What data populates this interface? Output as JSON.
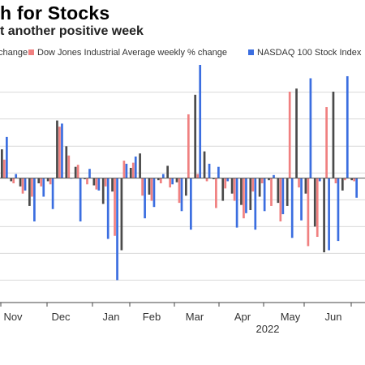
{
  "title": "h for Stocks",
  "subtitle": "t another positive week",
  "chart_data": {
    "type": "bar",
    "title": "h for Stocks",
    "subtitle": "t another positive week",
    "legend_placement": "top",
    "series": [
      {
        "name": "change",
        "color": "#4a4a4a",
        "values": [
          2.8,
          -0.3,
          -0.8,
          -2.7,
          -0.5,
          -0.3,
          5.6,
          3.1,
          1.1,
          -0.1,
          -0.7,
          -2.5,
          -1.3,
          -7.0,
          1.0,
          2.4,
          -1.6,
          -0.2,
          1.2,
          -0.4,
          -1.7,
          8.1,
          2.6,
          -0.1,
          -2.2,
          -1.5,
          -2.6,
          -3.1,
          -1.8,
          -0.2,
          -2.4,
          -2.7,
          8.7,
          -1.5,
          -4.7,
          -7.2,
          8.4,
          -1.2,
          -0.2
        ]
      },
      {
        "name": "Dow Jones Industrial Average weekly % change",
        "color": "#f08080",
        "values": [
          1.8,
          -0.5,
          -1.5,
          -1.8,
          -0.8,
          -0.6,
          5.0,
          2.2,
          1.3,
          -0.6,
          -1.1,
          -0.8,
          -5.6,
          1.7,
          1.5,
          -1.7,
          -2.2,
          -0.5,
          -0.9,
          -2.4,
          6.2,
          0.4,
          -0.3,
          -2.9,
          -1.0,
          -2.2,
          -3.9,
          -1.3,
          -0.5,
          -2.7,
          -4.2,
          8.4,
          -0.9,
          -6.6,
          -5.7,
          6.9,
          -0.5,
          -0.2,
          -0.3
        ]
      },
      {
        "name": "NASDAQ 100 Stock Index",
        "color": "#3b6ee0",
        "values": [
          4.0,
          0.4,
          -1.2,
          -4.2,
          -1.8,
          -3.0,
          5.3,
          0.0,
          -4.2,
          0.9,
          -1.2,
          -5.9,
          -9.9,
          1.4,
          2.1,
          -3.9,
          -2.8,
          0.4,
          -0.6,
          -3.2,
          -5.0,
          11.0,
          1.4,
          1.1,
          -0.3,
          -4.8,
          -3.4,
          -5.0,
          -3.2,
          0.3,
          -3.5,
          -5.8,
          -4.1,
          9.7,
          -0.3,
          -7.0,
          -6.1,
          9.9,
          -1.9
        ]
      }
    ],
    "x_tick_labels": [
      "Nov",
      "Dec",
      "Jan",
      "Feb",
      "Mar",
      "Apr",
      "May",
      "Jun"
    ],
    "x_year_label": "2022",
    "ylim": [
      -12,
      11
    ],
    "grid": true
  }
}
